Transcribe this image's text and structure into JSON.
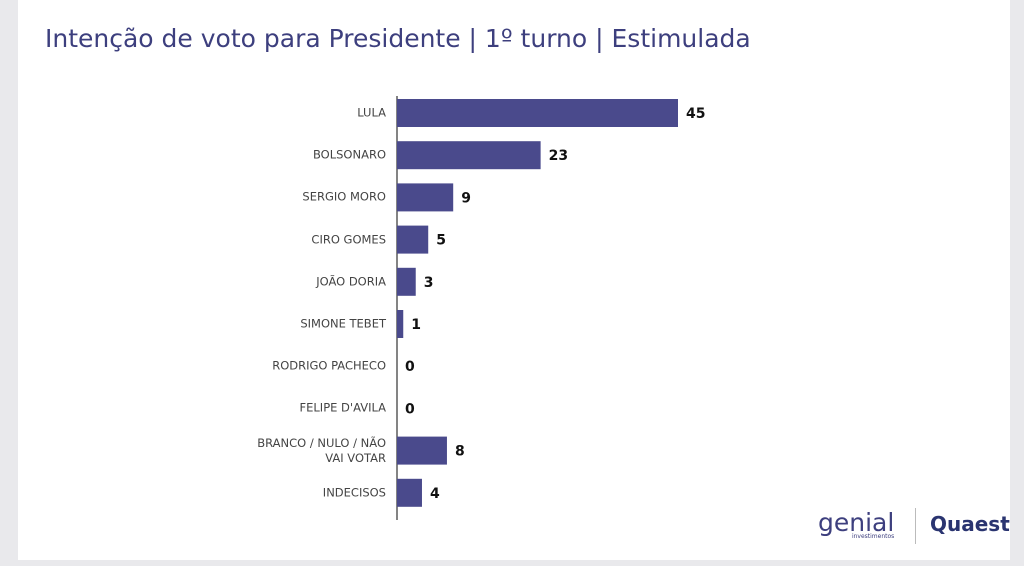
{
  "chart_data": {
    "type": "bar",
    "orientation": "horizontal",
    "title": "Intenção de voto para Presidente | 1º turno | Estimulada",
    "categories": [
      "LULA",
      "BOLSONARO",
      "SERGIO MORO",
      "CIRO GOMES",
      "JOÃO DORIA",
      "SIMONE TEBET",
      "RODRIGO PACHECO",
      "FELIPE D'AVILA",
      "BRANCO / NULO / NÃO VAI VOTAR",
      "INDECISOS"
    ],
    "values": [
      45,
      23,
      9,
      5,
      3,
      1,
      0,
      0,
      8,
      4
    ],
    "color": "#4a4a8c"
  },
  "logos": {
    "genial": "genial",
    "genial_sub": "investimentos",
    "quaest": "Quaest"
  }
}
